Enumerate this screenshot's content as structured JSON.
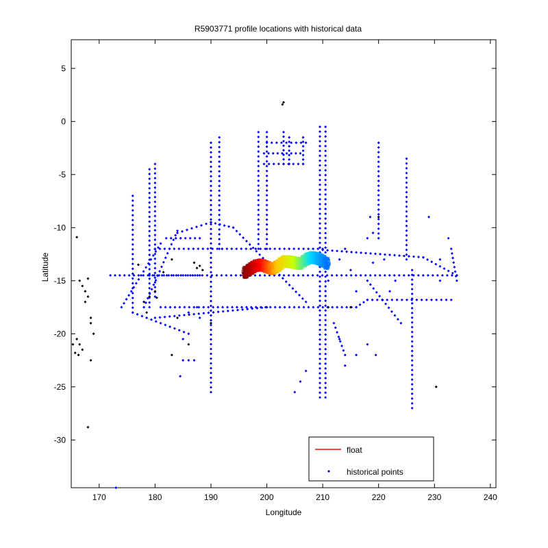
{
  "chart_data": {
    "type": "scatter",
    "title": "R5903771 profile locations with historical data",
    "xlabel": "Longitude",
    "ylabel": "Latitude",
    "xlim": [
      165,
      241
    ],
    "ylim": [
      -34.5,
      7.7
    ],
    "xticks": [
      170,
      180,
      190,
      200,
      210,
      220,
      230,
      240
    ],
    "yticks": [
      5,
      0,
      -5,
      -10,
      -15,
      -20,
      -25,
      -30
    ],
    "grid": false,
    "legend": {
      "placement": "bottom-right",
      "entries": [
        "float",
        "historical points"
      ]
    },
    "colors": {
      "float": "#ff0000",
      "historical": "#0000ff",
      "other": "#000000"
    },
    "series": [
      {
        "name": "historical points",
        "marker": "diamond",
        "color": "#0000ff",
        "lines": [
          [
            [
              176,
              -7
            ],
            [
              176,
              -18
            ]
          ],
          [
            [
              179,
              -4.5
            ],
            [
              179,
              -17.5
            ]
          ],
          [
            [
              180,
              -4
            ],
            [
              180,
              -16.5
            ]
          ],
          [
            [
              190,
              -2
            ],
            [
              190,
              -25.5
            ]
          ],
          [
            [
              191.5,
              -1.5
            ],
            [
              191.5,
              -12
            ]
          ],
          [
            [
              198.5,
              -1
            ],
            [
              198.5,
              -12
            ]
          ],
          [
            [
              203,
              -1
            ],
            [
              203,
              -4
            ]
          ],
          [
            [
              204,
              -1.5
            ],
            [
              204,
              -4
            ]
          ],
          [
            [
              206.5,
              -1.5
            ],
            [
              206.5,
              -4
            ]
          ],
          [
            [
              200,
              -1
            ],
            [
              200,
              -12
            ]
          ],
          [
            [
              209.5,
              -0.5
            ],
            [
              209.5,
              -26
            ]
          ],
          [
            [
              210.5,
              -0.5
            ],
            [
              210.5,
              -26
            ]
          ],
          [
            [
              199.5,
              -4
            ],
            [
              206.5,
              -4
            ]
          ],
          [
            [
              199.5,
              -3
            ],
            [
              206,
              -3
            ]
          ],
          [
            [
              200,
              -2
            ],
            [
              207,
              -2
            ]
          ],
          [
            [
              220,
              -2
            ],
            [
              220,
              -11
            ]
          ],
          [
            [
              225,
              -3.5
            ],
            [
              225,
              -13
            ]
          ],
          [
            [
              226,
              -14
            ],
            [
              226,
              -27
            ]
          ],
          [
            [
              233,
              -12
            ],
            [
              234,
              -15
            ]
          ],
          [
            [
              179,
              -14.5
            ],
            [
              234,
              -14.5
            ]
          ],
          [
            [
              172,
              -14.5
            ],
            [
              188,
              -14.5
            ]
          ],
          [
            [
              180,
              -12
            ],
            [
              210,
              -12
            ]
          ],
          [
            [
              180,
              -18.5
            ],
            [
              200,
              -17.5
            ]
          ],
          [
            [
              181,
              -17.5
            ],
            [
              216,
              -17.5
            ]
          ],
          [
            [
              216,
              -17.5
            ],
            [
              218,
              -16.8
            ]
          ],
          [
            [
              218,
              -16.8
            ],
            [
              233,
              -16.8
            ]
          ],
          [
            [
              210,
              -12.1
            ],
            [
              228,
              -12.8
            ]
          ],
          [
            [
              228,
              -12.8
            ],
            [
              234,
              -14.5
            ]
          ],
          [
            [
              184,
              -10.5
            ],
            [
              190,
              -9.5
            ]
          ],
          [
            [
              190,
              -9.5
            ],
            [
              194,
              -10
            ]
          ],
          [
            [
              194,
              -10
            ],
            [
              207,
              -17
            ]
          ],
          [
            [
              178,
              -17.5
            ],
            [
              184,
              -10.3
            ]
          ],
          [
            [
              174,
              -17.5
            ],
            [
              181,
              -11.5
            ]
          ],
          [
            [
              176,
              -18
            ],
            [
              186,
              -20
            ]
          ],
          [
            [
              185,
              -22.5
            ],
            [
              187,
              -22.5
            ]
          ],
          [
            [
              182,
              -11
            ],
            [
              188,
              -11
            ]
          ],
          [
            [
              218,
              -15
            ],
            [
              224,
              -19
            ]
          ],
          [
            [
              212,
              -19
            ],
            [
              214,
              -22
            ]
          ]
        ],
        "points": [
          [
            221,
            -13
          ],
          [
            219,
            -13.3
          ],
          [
            218.5,
            -9
          ],
          [
            218,
            -11
          ],
          [
            232.5,
            -11
          ],
          [
            229,
            -9
          ],
          [
            231,
            -13
          ],
          [
            231,
            -15
          ],
          [
            223,
            -15
          ],
          [
            222,
            -16
          ],
          [
            213,
            -20.5
          ],
          [
            216,
            -22
          ],
          [
            218,
            -21
          ],
          [
            219.5,
            -22
          ],
          [
            214,
            -23
          ],
          [
            207,
            -23.5
          ],
          [
            205,
            -25.5
          ],
          [
            206,
            -24.5
          ],
          [
            173,
            -34.5
          ],
          [
            184.5,
            -24
          ],
          [
            185,
            -20.5
          ],
          [
            186,
            -18
          ],
          [
            188,
            -18.5
          ],
          [
            187.5,
            -17.5
          ],
          [
            219,
            -10.5
          ],
          [
            214,
            -12
          ],
          [
            213,
            -13
          ],
          [
            215,
            -14
          ],
          [
            211,
            -15
          ],
          [
            216,
            -16
          ]
        ]
      },
      {
        "name": "float",
        "color": "#ff0000",
        "x": [
          196,
          197,
          198,
          199,
          200,
          201,
          202,
          203,
          204,
          205,
          206,
          207,
          208,
          209,
          210,
          211
        ],
        "y": [
          -14.3,
          -13.9,
          -13.6,
          -13.5,
          -13.7,
          -13.9,
          -13.6,
          -13.2,
          -13.2,
          -13.3,
          -13.4,
          -13,
          -12.8,
          -12.9,
          -13.1,
          -13.5
        ]
      },
      {
        "name": "",
        "marker": "diamond",
        "color": "#000000",
        "points": [
          [
            166,
            -10.9
          ],
          [
            166.5,
            -15
          ],
          [
            167,
            -15.5
          ],
          [
            167.5,
            -16
          ],
          [
            168,
            -14.8
          ],
          [
            168,
            -16.5
          ],
          [
            167.5,
            -17
          ],
          [
            168.5,
            -18.5
          ],
          [
            168.5,
            -19
          ],
          [
            169,
            -20
          ],
          [
            166,
            -20.5
          ],
          [
            166.5,
            -21
          ],
          [
            167,
            -21.5
          ],
          [
            165.3,
            -21
          ],
          [
            165.7,
            -21.8
          ],
          [
            166.3,
            -22
          ],
          [
            168.5,
            -22.5
          ],
          [
            168,
            -28.8
          ],
          [
            177,
            -13.5
          ],
          [
            178,
            -17
          ],
          [
            178.5,
            -18
          ],
          [
            179,
            -16.5
          ],
          [
            180,
            -16
          ],
          [
            180.3,
            -16.6
          ],
          [
            181.5,
            -14.2
          ],
          [
            183,
            -13
          ],
          [
            187,
            -13.3
          ],
          [
            188,
            -13.6
          ],
          [
            188.5,
            -14
          ],
          [
            187.5,
            -13.8
          ],
          [
            184,
            -18.5
          ],
          [
            183,
            -22
          ],
          [
            186,
            -21
          ],
          [
            190,
            -19
          ],
          [
            203,
            1.8
          ],
          [
            202.8,
            1.6
          ],
          [
            211,
            -17.5
          ],
          [
            215,
            -17.5
          ],
          [
            220,
            -9
          ],
          [
            230.3,
            -25
          ]
        ]
      }
    ]
  }
}
